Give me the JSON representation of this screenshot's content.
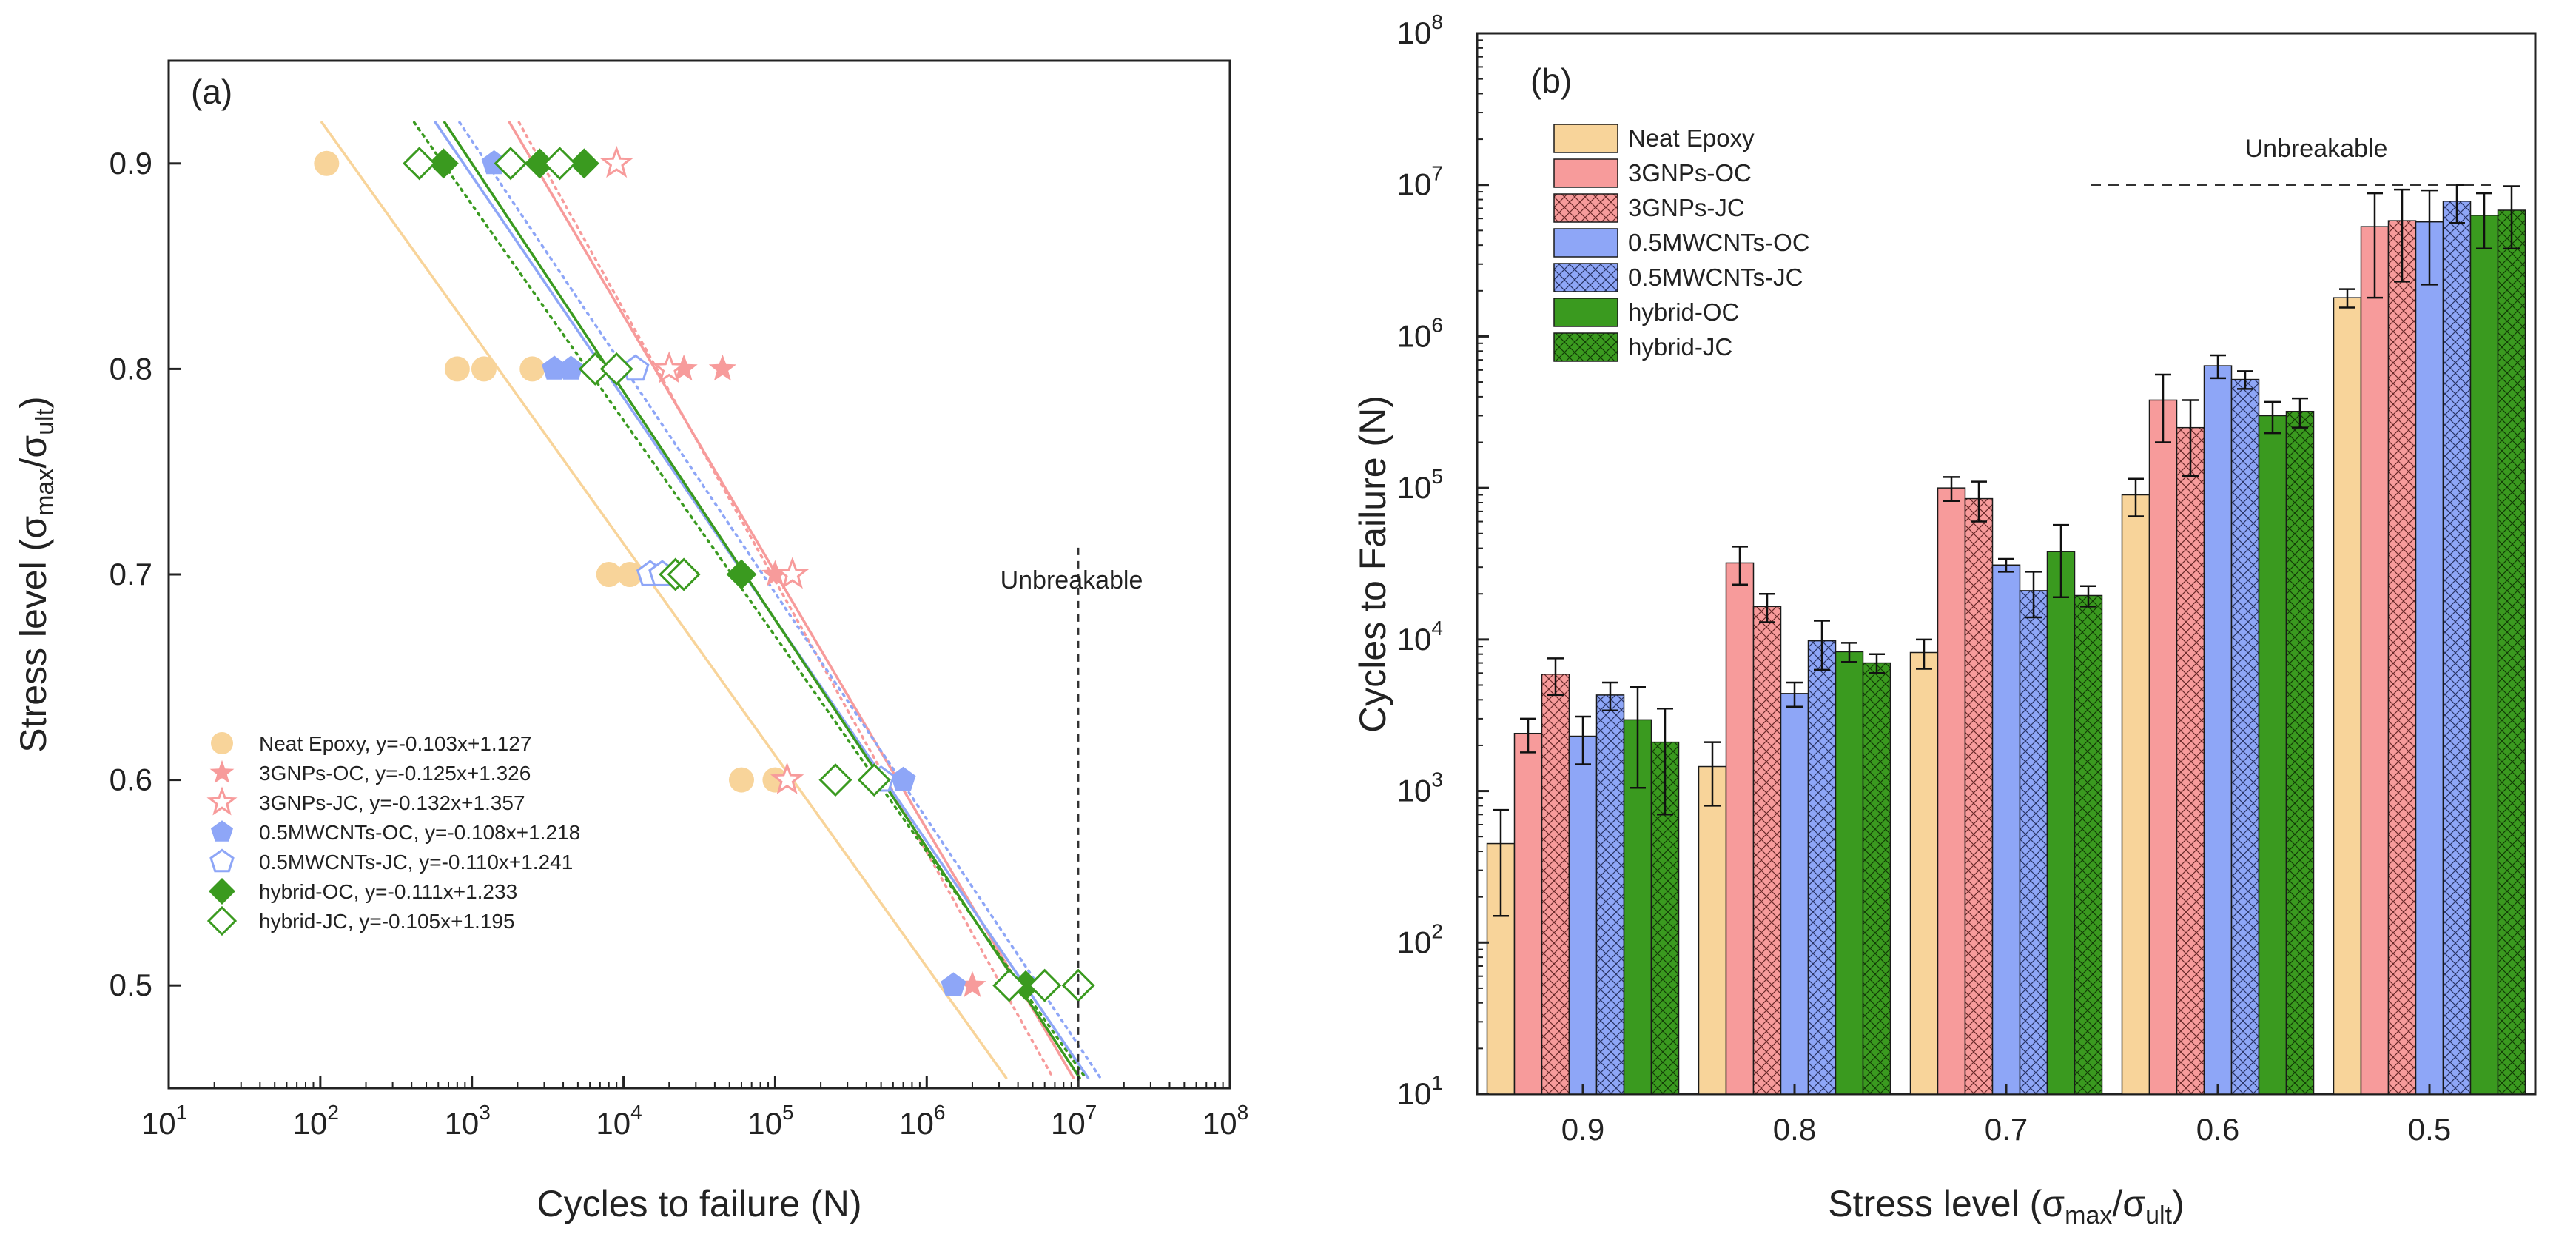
{
  "chart_data": [
    {
      "panel": "(a)",
      "type": "scatter",
      "xlabel": "Cycles to failure (N)",
      "ylabel_main": "Stress level (σ",
      "ylabel_sub1": "max",
      "ylabel_mid": "/σ",
      "ylabel_sub2": "ult",
      "ylabel_end": ")",
      "x_scale": "log",
      "xlim": [
        10,
        100000000
      ],
      "x_tick_exponents": [
        "1",
        "2",
        "3",
        "4",
        "5",
        "6",
        "7",
        "8"
      ],
      "ylim": [
        0.45,
        0.95
      ],
      "y_ticks": [
        "0.5",
        "0.6",
        "0.7",
        "0.8",
        "0.9"
      ],
      "unbreakable_label": "Unbreakable",
      "unbreakable_x": 10000000,
      "legend_position": "bottom-left",
      "series": [
        {
          "name": "Neat Epoxy, y=-0.103x+1.127",
          "color": "#f8d49a",
          "marker": "circle",
          "filled": true,
          "line": "solid",
          "slope": -0.103,
          "intercept": 1.127,
          "points": [
            [
              0.9,
              110
            ],
            [
              0.8,
              800
            ],
            [
              0.8,
              1200
            ],
            [
              0.8,
              2500
            ],
            [
              0.7,
              8000
            ],
            [
              0.7,
              11000
            ],
            [
              0.6,
              60000
            ],
            [
              0.6,
              100000
            ]
          ]
        },
        {
          "name": "3GNPs-OC, y=-0.125x+1.326",
          "color": "#f79b9b",
          "marker": "star",
          "filled": true,
          "line": "solid",
          "slope": -0.125,
          "intercept": 1.326,
          "points": [
            [
              0.8,
              25000
            ],
            [
              0.8,
              45000
            ],
            [
              0.7,
              100000
            ],
            [
              0.5,
              2000000
            ]
          ]
        },
        {
          "name": "3GNPs-JC, y=-0.132x+1.357",
          "color": "#f79b9b",
          "marker": "star",
          "filled": false,
          "line": "dot",
          "slope": -0.132,
          "intercept": 1.357,
          "points": [
            [
              0.9,
              9000
            ],
            [
              0.8,
              20000
            ],
            [
              0.7,
              130000
            ],
            [
              0.6,
              120000
            ]
          ]
        },
        {
          "name": "0.5MWCNTs-OC, y=-0.108x+1.218",
          "color": "#8ea6f7",
          "marker": "pentagon",
          "filled": true,
          "line": "solid",
          "slope": -0.108,
          "intercept": 1.218,
          "points": [
            [
              0.9,
              1400
            ],
            [
              0.8,
              3500
            ],
            [
              0.8,
              4500
            ],
            [
              0.6,
              700000
            ],
            [
              0.5,
              1500000
            ]
          ]
        },
        {
          "name": "0.5MWCNTs-JC, y=-0.110x+1.241",
          "color": "#8ea6f7",
          "marker": "pentagon",
          "filled": false,
          "line": "dot",
          "slope": -0.11,
          "intercept": 1.241,
          "points": [
            [
              0.8,
              12000
            ],
            [
              0.7,
              15000
            ],
            [
              0.7,
              18000
            ],
            [
              0.6,
              500000
            ]
          ]
        },
        {
          "name": "hybrid-OC, y=-0.111x+1.233",
          "color": "#3a9a1f",
          "marker": "diamond",
          "filled": true,
          "line": "solid",
          "slope": -0.111,
          "intercept": 1.233,
          "points": [
            [
              0.9,
              650
            ],
            [
              0.9,
              2800
            ],
            [
              0.9,
              5500
            ],
            [
              0.7,
              60000
            ],
            [
              0.5,
              4500000
            ]
          ]
        },
        {
          "name": "hybrid-JC, y=-0.105x+1.195",
          "color": "#3a9a1f",
          "marker": "diamond",
          "filled": false,
          "line": "dot",
          "slope": -0.105,
          "intercept": 1.195,
          "points": [
            [
              0.9,
              450
            ],
            [
              0.9,
              1800
            ],
            [
              0.9,
              3800
            ],
            [
              0.8,
              6500
            ],
            [
              0.8,
              9000
            ],
            [
              0.7,
              22000
            ],
            [
              0.7,
              25000
            ],
            [
              0.6,
              250000
            ],
            [
              0.6,
              450000
            ],
            [
              0.5,
              3500000
            ],
            [
              0.5,
              6000000
            ],
            [
              0.5,
              10000000
            ]
          ]
        }
      ]
    },
    {
      "panel": "(b)",
      "type": "bar",
      "xlabel_main": "Stress level (σ",
      "xlabel_sub1": "max",
      "xlabel_mid": "/σ",
      "xlabel_sub2": "ult",
      "xlabel_end": ")",
      "ylabel": "Cycles to Failure (N)",
      "y_scale": "log",
      "ylim": [
        10,
        100000000
      ],
      "y_tick_exponents": [
        "1",
        "2",
        "3",
        "4",
        "5",
        "6",
        "7",
        "8"
      ],
      "categories": [
        "0.9",
        "0.8",
        "0.7",
        "0.6",
        "0.5"
      ],
      "unbreakable_label": "Unbreakable",
      "unbreakable_value": 10000000,
      "legend_position": "top-left",
      "series": [
        {
          "name": "Neat Epoxy",
          "color": "#f8d49a",
          "hatch": false,
          "values": [
            450,
            1450,
            8200,
            90000,
            1800000
          ],
          "errors": [
            300,
            650,
            1800,
            25000,
            250000
          ]
        },
        {
          "name": "3GNPs-OC",
          "color": "#f79b9b",
          "hatch": false,
          "values": [
            2400,
            32000,
            100000,
            380000,
            5300000
          ],
          "errors": [
            600,
            9000,
            18000,
            180000,
            3500000
          ]
        },
        {
          "name": "3GNPs-JC",
          "color": "#f79b9b",
          "hatch": true,
          "values": [
            5900,
            16500,
            85000,
            250000,
            5800000
          ],
          "errors": [
            1600,
            3500,
            25000,
            130000,
            3500000
          ]
        },
        {
          "name": "0.5MWCNTs-OC",
          "color": "#8ea6f7",
          "hatch": false,
          "values": [
            2300,
            4400,
            31000,
            640000,
            5700000
          ],
          "errors": [
            800,
            800,
            3000,
            110000,
            3500000
          ]
        },
        {
          "name": "0.5MWCNTs-JC",
          "color": "#8ea6f7",
          "hatch": true,
          "values": [
            4300,
            9800,
            21000,
            520000,
            7800000
          ],
          "errors": [
            900,
            3500,
            7000,
            70000,
            2200000
          ]
        },
        {
          "name": "hybrid-OC",
          "color": "#3a9a1f",
          "hatch": false,
          "values": [
            2950,
            8300,
            38000,
            300000,
            6300000
          ],
          "errors": [
            1900,
            1200,
            19000,
            70000,
            2500000
          ]
        },
        {
          "name": "hybrid-JC",
          "color": "#3a9a1f",
          "hatch": true,
          "values": [
            2100,
            7000,
            19500,
            320000,
            6800000
          ],
          "errors": [
            1400,
            1000,
            3000,
            70000,
            3000000
          ]
        }
      ]
    }
  ]
}
